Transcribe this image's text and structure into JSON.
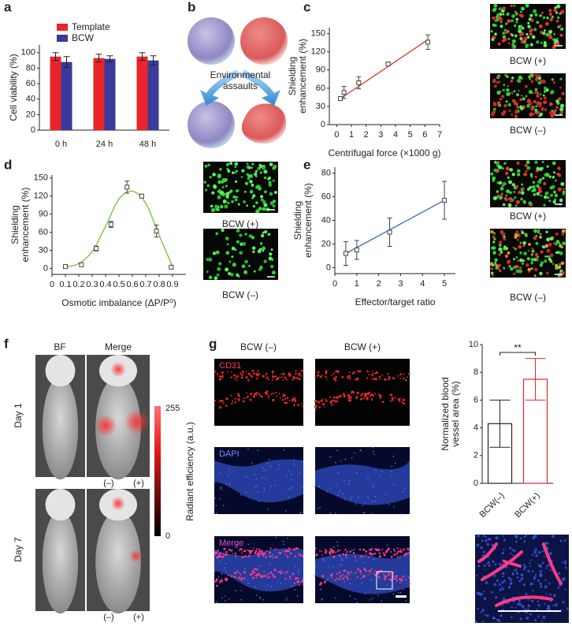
{
  "letters": [
    "a",
    "b",
    "c",
    "d",
    "e",
    "f",
    "g"
  ],
  "assault_label": [
    "Environmental",
    "assaults"
  ],
  "captions": {
    "c": [
      "BCW (+)",
      "BCW (–)"
    ],
    "d": [
      "BCW (+)",
      "BCW (–)"
    ],
    "e": [
      "BCW (+)",
      "BCW (–)"
    ]
  },
  "f": {
    "columns": [
      "BF",
      "Merge"
    ],
    "rows": [
      "Day 1",
      "Day 7"
    ],
    "group_labels": [
      "(–)",
      "(+)"
    ],
    "colorbar": {
      "lim": [
        0,
        255
      ],
      "label": "Radiant efficiency (a.u.)"
    }
  },
  "g": {
    "columns": [
      "BCW (–)",
      "BCW (+)"
    ],
    "rows": [
      "CD31",
      "DAPI",
      "Merge"
    ]
  },
  "chart_data": [
    {
      "type": "bar",
      "ylabel": [
        "Cell viability (%)"
      ],
      "categories": [
        "0 h",
        "24 h",
        "48 h"
      ],
      "series": [
        {
          "name": "Template",
          "color": "#e8262a",
          "values": [
            95,
            93,
            95
          ],
          "errors": [
            5,
            5,
            5
          ]
        },
        {
          "name": "BCW",
          "color": "#3a3a9c",
          "values": [
            88,
            92,
            90
          ],
          "errors": [
            7,
            4,
            6
          ]
        }
      ],
      "bar_style": "filled",
      "ylim": [
        0,
        110
      ],
      "yticks": [
        0,
        20,
        40,
        60,
        80,
        100
      ],
      "legend": "top-left"
    },
    {
      "type": "scatter",
      "ylabel": [
        "Shielding",
        "enhancement (%)"
      ],
      "xlabel": "Centrifugal force (×1000 g)",
      "x": [
        0.25,
        0.5,
        1.5,
        3.5,
        6.2
      ],
      "values": [
        43,
        53,
        69,
        100,
        136
      ],
      "errors": [
        3,
        10,
        10,
        2,
        12
      ],
      "color": "#444",
      "fit": {
        "color": "#d9432f",
        "x": [
          0.2,
          6.2
        ],
        "y": [
          42,
          140
        ]
      },
      "xlim": [
        -0.5,
        7
      ],
      "xticks": [
        0,
        1,
        2,
        3,
        4,
        5,
        6,
        7
      ],
      "ylim": [
        0,
        160
      ],
      "yticks": [
        0,
        30,
        60,
        90,
        120,
        150
      ]
    },
    {
      "type": "scatter",
      "ylabel": [
        "Shielding",
        "enhancement (%)"
      ],
      "xlabel": "Osmotic imbalance (ΔP/P⁰)",
      "x": [
        0.1,
        0.22,
        0.33,
        0.44,
        0.56,
        0.67,
        0.78,
        0.89
      ],
      "values": [
        3,
        6,
        33,
        73,
        135,
        120,
        62,
        2
      ],
      "errors": [
        2,
        3,
        4,
        5,
        10,
        3,
        10,
        2
      ],
      "color": "#444",
      "fit": {
        "color": "#7cc242",
        "x": [
          0.1,
          0.2,
          0.3,
          0.4,
          0.5,
          0.6,
          0.7,
          0.8,
          0.9
        ],
        "y": [
          2,
          8,
          28,
          70,
          115,
          128,
          108,
          55,
          3
        ]
      },
      "xlim": [
        0,
        1
      ],
      "xticks": [
        0,
        0.1,
        0.2,
        0.3,
        0.4,
        0.5,
        0.6,
        0.7,
        0.8,
        0.9
      ],
      "ylim": [
        -10,
        155
      ],
      "yticks": [
        0,
        30,
        60,
        90,
        120,
        150
      ]
    },
    {
      "type": "scatter",
      "ylabel": [
        "Shielding",
        "enhancement (%)"
      ],
      "xlabel": "Effector/target ratio",
      "x": [
        0.5,
        1,
        2.5,
        5
      ],
      "values": [
        12,
        15,
        30,
        57
      ],
      "errors": [
        10,
        8,
        12,
        16
      ],
      "color": "#444",
      "fit": {
        "color": "#4a6fc0",
        "x": [
          0.5,
          5
        ],
        "y": [
          12,
          57
        ]
      },
      "xlim": [
        0,
        5.5
      ],
      "xticks": [
        0,
        1,
        2,
        3,
        4,
        5
      ],
      "ylim": [
        -5,
        85
      ],
      "yticks": [
        0,
        20,
        40,
        60,
        80
      ]
    },
    {
      "type": "bar",
      "ylabel": [
        "Normalized blood",
        "vessel area (%)"
      ],
      "categories": [
        "BCW(–)",
        "BCW(+)"
      ],
      "series": [
        {
          "colors": [
            "#222222",
            "#e8262a"
          ],
          "values": [
            4.3,
            7.5
          ],
          "errors": [
            1.7,
            1.5
          ]
        }
      ],
      "bar_style": "outline",
      "annotation": "**",
      "ylim": [
        0,
        10
      ],
      "yticks": [
        0,
        2,
        4,
        6,
        8,
        10
      ]
    }
  ]
}
